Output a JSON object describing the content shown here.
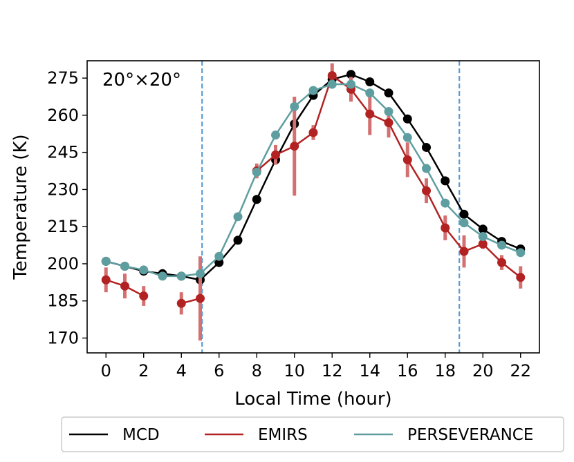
{
  "chart_data": {
    "type": "line",
    "annotation": "20°×20°",
    "xlabel": "Local Time (hour)",
    "ylabel": "Temperature (K)",
    "xlim": [
      -1,
      23
    ],
    "ylim": [
      164,
      282
    ],
    "xticks": [
      0,
      2,
      4,
      6,
      8,
      10,
      12,
      14,
      16,
      18,
      20,
      22
    ],
    "yticks": [
      170,
      185,
      200,
      215,
      230,
      245,
      260,
      275
    ],
    "grid": false,
    "legend_position": "bottom-outside",
    "vlines": [
      5.1,
      18.75
    ],
    "vline_color": "#5b9bd5",
    "series": [
      {
        "name": "MCD",
        "color": "#000000",
        "x": [
          0,
          1,
          2,
          3,
          4,
          5,
          6,
          7,
          8,
          9,
          10,
          11,
          12,
          13,
          14,
          15,
          16,
          17,
          18,
          19,
          20,
          21,
          22
        ],
        "values": [
          201,
          199,
          197,
          196,
          195,
          193.5,
          200.5,
          209.5,
          226,
          242,
          256.5,
          268,
          274.5,
          276.5,
          273.5,
          269,
          258.5,
          247,
          233.5,
          220,
          214,
          209,
          206
        ]
      },
      {
        "name": "EMIRS",
        "color": "#b22222",
        "errorbar_color": "#d47070",
        "x": [
          0,
          1,
          2,
          4,
          5,
          8,
          9,
          10,
          11,
          12,
          13,
          14,
          15,
          16,
          17,
          18,
          19,
          20,
          21,
          22
        ],
        "values": [
          193.5,
          191,
          187,
          184,
          186,
          237.5,
          244,
          247.5,
          253,
          276,
          270.5,
          260.5,
          257,
          242,
          229.5,
          214.5,
          205,
          208,
          200.5,
          194.5
        ],
        "errors": [
          5,
          5,
          4,
          4.5,
          17,
          3,
          4,
          20,
          3,
          5,
          5,
          8.5,
          6,
          7,
          5,
          5,
          6.5,
          2,
          3,
          4.5
        ]
      },
      {
        "name": "PERSEVERANCE",
        "color": "#5f9ea0",
        "x": [
          0,
          1,
          2,
          3,
          4,
          5,
          6,
          7,
          8,
          9,
          10,
          11,
          12,
          13,
          14,
          15,
          16,
          17,
          18,
          19,
          20,
          21,
          22
        ],
        "values": [
          201,
          199,
          197.5,
          195,
          195,
          196,
          203,
          219,
          237,
          252,
          263.5,
          270,
          272.5,
          272.5,
          269,
          261.5,
          251,
          238.5,
          224.5,
          216.5,
          211,
          207.5,
          204.5
        ]
      }
    ]
  }
}
